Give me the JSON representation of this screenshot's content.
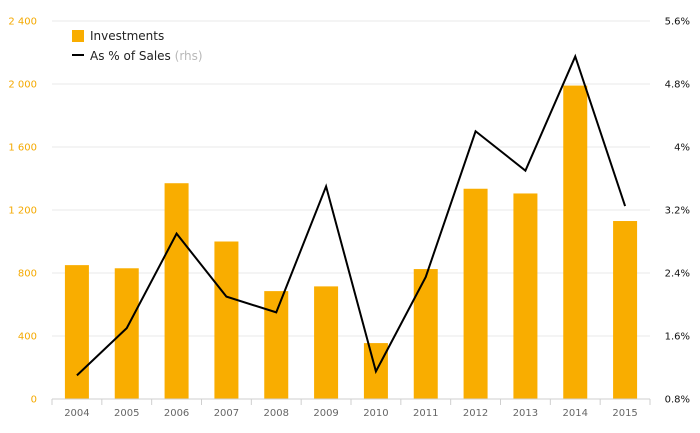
{
  "colors": {
    "bar": "#f9ad00",
    "line": "#000000",
    "left_axis_text": "#f4a900",
    "grid": "#e9e9e9"
  },
  "chart_data": {
    "type": "bar",
    "categories": [
      "2004",
      "2005",
      "2006",
      "2007",
      "2008",
      "2009",
      "2010",
      "2011",
      "2012",
      "2013",
      "2014",
      "2015"
    ],
    "series": [
      {
        "name": "Investments",
        "type": "bar",
        "axis": "left",
        "values": [
          850,
          830,
          1370,
          1000,
          685,
          715,
          355,
          825,
          1335,
          1305,
          1990,
          1130
        ]
      },
      {
        "name": "As % of Sales",
        "type": "line",
        "axis": "right",
        "values": [
          1.1,
          1.7,
          2.9,
          2.1,
          1.9,
          3.5,
          1.15,
          2.35,
          4.2,
          3.7,
          5.15,
          3.25
        ]
      }
    ],
    "y_left": {
      "ylim": [
        0,
        2400
      ],
      "ticks": [
        0,
        400,
        800,
        1200,
        1600,
        2000,
        2400
      ],
      "tick_labels": [
        "0",
        "400",
        "800",
        "1 200",
        "1 600",
        "2 000",
        "2 400"
      ]
    },
    "y_right": {
      "ylim": [
        0.8,
        5.6
      ],
      "ticks": [
        0.8,
        1.6,
        2.4,
        3.2,
        4,
        4.8,
        5.6
      ],
      "tick_labels": [
        "0.8%",
        "1.6%",
        "2.4%",
        "3.2%",
        "4%",
        "4.8%",
        "5.6%"
      ]
    },
    "legend": {
      "position": "top-left",
      "items": [
        {
          "label": "Investments",
          "note": ""
        },
        {
          "label": "As % of Sales",
          "note": "(rhs)"
        }
      ]
    },
    "grid": true
  }
}
